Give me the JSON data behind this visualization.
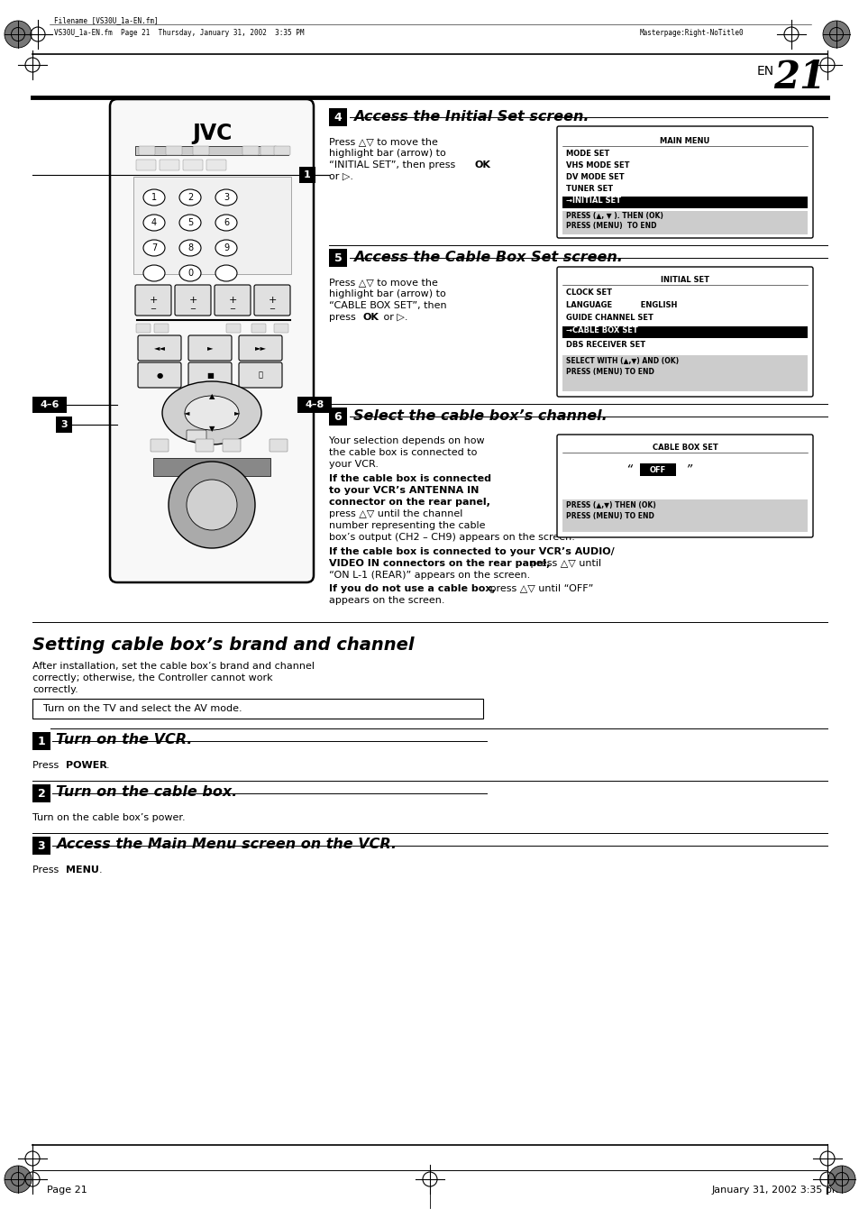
{
  "bg_color": "#ffffff",
  "page_width": 9.54,
  "page_height": 13.51,
  "dpi": 100,
  "header_filename": "Filename [VS30U_1a-EN.fm]",
  "header_file": "VS30U_1a-EN.fm  Page 21  Thursday, January 31, 2002  3:35 PM",
  "header_right": "Masterpage:Right-NoTitle0",
  "footer_left": "Page 21",
  "footer_right": "January 31, 2002 3:35 pm",
  "page_number": "21",
  "page_lang": "EN",
  "section_title": "Setting cable box’s brand and channel",
  "section_intro1": "After installation, set the cable box’s brand and channel",
  "section_intro2": "correctly; otherwise, the Controller cannot work",
  "section_intro3": "correctly.",
  "prereq_box": "Turn on the TV and select the AV mode.",
  "step1_title": "Turn on the VCR.",
  "step2_title": "Turn on the cable box.",
  "step3_title": "Access the Main Menu screen on the VCR.",
  "step4_title": "Access the Initial Set screen.",
  "step5_title": "Access the Cable Box Set screen.",
  "step6_title": "Select the cable box’s channel."
}
